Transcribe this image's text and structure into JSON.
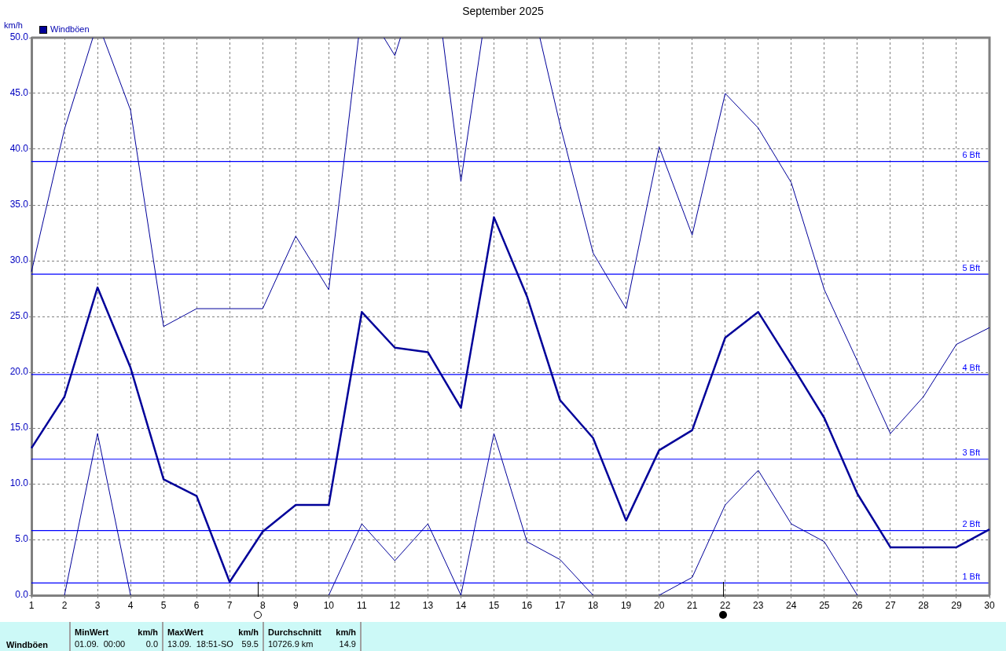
{
  "chart_data": {
    "type": "line",
    "title": "September 2025",
    "ylabel": "km/h",
    "x": [
      1,
      2,
      3,
      4,
      5,
      6,
      7,
      8,
      9,
      10,
      11,
      12,
      13,
      14,
      15,
      16,
      17,
      18,
      19,
      20,
      21,
      22,
      23,
      24,
      25,
      26,
      27,
      28,
      29,
      30
    ],
    "series": [
      {
        "name": "Windböen",
        "color": "#000099",
        "values": [
          13.2,
          17.8,
          27.6,
          20.4,
          10.4,
          8.9,
          1.2,
          5.7,
          8.1,
          8.1,
          25.4,
          22.2,
          21.8,
          16.8,
          33.9,
          26.8,
          17.5,
          14.1,
          6.7,
          13.0,
          14.8,
          23.1,
          25.4,
          20.7,
          15.9,
          9.1,
          4.3,
          4.3,
          4.3,
          5.9
        ]
      },
      {
        "color": "#000099",
        "x": [
          1,
          2,
          2.86,
          3,
          3.18,
          4,
          5,
          6,
          7,
          8,
          9,
          10,
          10.9,
          11,
          11.67,
          12,
          12.17,
          13,
          13.45,
          14,
          14.64,
          15,
          16.39,
          17,
          18,
          19,
          20,
          21,
          22,
          23,
          24,
          25,
          26,
          27,
          28,
          29,
          30
        ],
        "values": [
          29.0,
          41.8,
          50,
          null,
          50,
          43.5,
          24.1,
          25.7,
          25.7,
          25.7,
          32.2,
          27.4,
          50,
          null,
          50,
          48.4,
          50,
          null,
          50,
          37.1,
          50,
          null,
          50,
          42.2,
          30.7,
          25.7,
          40.2,
          32.3,
          45.0,
          41.9,
          37.0,
          27.4,
          21.0,
          14.5,
          17.8,
          22.5,
          24.0
        ]
      },
      {
        "color": "#000099",
        "values": [
          null,
          0,
          14.5,
          0,
          null,
          null,
          null,
          null,
          null,
          0,
          6.4,
          3.1,
          6.4,
          0,
          14.5,
          4.8,
          3.2,
          0,
          null,
          0,
          1.6,
          8.1,
          11.2,
          6.4,
          4.8,
          0,
          null,
          null,
          null,
          null
        ]
      }
    ],
    "xlim": [
      1,
      30
    ],
    "xticks": [
      1,
      2,
      3,
      4,
      5,
      6,
      7,
      8,
      9,
      10,
      11,
      12,
      13,
      14,
      15,
      16,
      17,
      18,
      19,
      20,
      21,
      22,
      23,
      24,
      25,
      26,
      27,
      28,
      29,
      30
    ],
    "ylim": [
      0,
      50
    ],
    "yticks": [
      {
        "value": 0,
        "label": "0.0"
      },
      {
        "value": 5,
        "label": "5.0"
      },
      {
        "value": 10,
        "label": "10.0"
      },
      {
        "value": 15,
        "label": "15.0"
      },
      {
        "value": 20,
        "label": "20.0"
      },
      {
        "value": 25,
        "label": "25.0"
      },
      {
        "value": 30,
        "label": "30.0"
      },
      {
        "value": 35,
        "label": "35.0"
      },
      {
        "value": 40,
        "label": "40.0"
      },
      {
        "value": 45,
        "label": "45.0"
      },
      {
        "value": 50,
        "label": "50.0"
      }
    ],
    "ref_lines": [
      {
        "axis": "y",
        "value": 1.1,
        "label": "1 Bft",
        "color": "#0000ff"
      },
      {
        "axis": "y",
        "value": 5.8,
        "label": "2 Bft",
        "color": "#0000ff"
      },
      {
        "axis": "y",
        "value": 12.2,
        "label": "3 Bft",
        "color": "#0000ff"
      },
      {
        "axis": "y",
        "value": 19.8,
        "label": "4 Bft",
        "color": "#0000ff"
      },
      {
        "axis": "y",
        "value": 28.8,
        "label": "5 Bft",
        "color": "#0000ff"
      },
      {
        "axis": "y",
        "value": 38.9,
        "label": "6 Bft",
        "color": "#0000ff"
      }
    ],
    "annotations": [
      "Windböen",
      "MinWert",
      "km/h",
      "01.09.  00:00",
      "0.0",
      "MaxWert",
      "km/h",
      "13.09.  18:51-SO",
      "59.5",
      "Durchschnitt",
      "km/h",
      "10726.9 km",
      "14.9"
    ],
    "grid": true,
    "legend": "top left",
    "marker": "none",
    "line_style": "solid"
  }
}
